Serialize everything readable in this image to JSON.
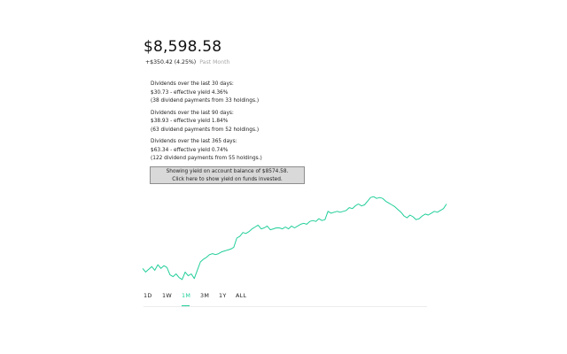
{
  "portfolio": {
    "balance": "$8,598.58",
    "change_value": "+$350.42 (4.25%)",
    "change_period": "Past Month"
  },
  "dividends": [
    {
      "heading": "Dividends over the last 30 days:",
      "amount_line": "$30.73 - effective yield 4.36%",
      "count_line": "(38 dividend payments from 33 holdings.)"
    },
    {
      "heading": "Dividends over the last 90 days:",
      "amount_line": "$38.93 - effective yield 1.84%",
      "count_line": "(63 dividend payments from 52 holdings.)"
    },
    {
      "heading": "Dividends over the last 365 days:",
      "amount_line": "$63.34 - effective yield 0.74%",
      "count_line": "(122 dividend payments from 55 holdings.)"
    }
  ],
  "yield_toggle": {
    "line1": "Showing yield on account balance of $8574.58.",
    "line2": "Click here to show yield on funds invested."
  },
  "range_tabs": [
    {
      "label": "1D",
      "active": false
    },
    {
      "label": "1W",
      "active": false
    },
    {
      "label": "1M",
      "active": true
    },
    {
      "label": "3M",
      "active": false
    },
    {
      "label": "1Y",
      "active": false
    },
    {
      "label": "ALL",
      "active": false
    }
  ],
  "colors": {
    "accent": "#21ce99",
    "line": "#21ce99"
  },
  "chart_data": {
    "type": "line",
    "title": "",
    "xlabel": "",
    "ylabel": "",
    "x_range": [
      0,
      100
    ],
    "ylim": [
      0,
      100
    ],
    "grid": false,
    "legend": "none",
    "series": [
      {
        "values": [
          [
            0,
            18
          ],
          [
            1,
            14
          ],
          [
            2,
            17
          ],
          [
            3,
            20
          ],
          [
            4,
            16
          ],
          [
            5,
            22
          ],
          [
            6,
            18
          ],
          [
            7,
            21
          ],
          [
            8,
            19
          ],
          [
            9,
            11
          ],
          [
            10,
            9
          ],
          [
            11,
            12
          ],
          [
            12,
            8
          ],
          [
            13,
            6
          ],
          [
            14,
            14
          ],
          [
            15,
            10
          ],
          [
            16,
            12
          ],
          [
            17,
            7
          ],
          [
            18,
            16
          ],
          [
            19,
            25
          ],
          [
            20,
            28
          ],
          [
            21,
            30
          ],
          [
            22,
            33
          ],
          [
            23,
            34
          ],
          [
            24,
            33
          ],
          [
            25,
            34
          ],
          [
            26,
            36
          ],
          [
            27,
            37
          ],
          [
            28,
            38
          ],
          [
            29,
            39
          ],
          [
            30,
            41
          ],
          [
            31,
            51
          ],
          [
            32,
            53
          ],
          [
            33,
            57
          ],
          [
            34,
            56
          ],
          [
            35,
            58
          ],
          [
            36,
            61
          ],
          [
            37,
            63
          ],
          [
            38,
            65
          ],
          [
            39,
            61
          ],
          [
            40,
            62
          ],
          [
            41,
            64
          ],
          [
            42,
            60
          ],
          [
            43,
            61
          ],
          [
            44,
            62
          ],
          [
            45,
            62
          ],
          [
            46,
            61
          ],
          [
            47,
            63
          ],
          [
            48,
            61
          ],
          [
            49,
            64
          ],
          [
            50,
            62
          ],
          [
            51,
            64
          ],
          [
            52,
            66
          ],
          [
            53,
            67
          ],
          [
            54,
            66
          ],
          [
            55,
            69
          ],
          [
            56,
            70
          ],
          [
            57,
            69
          ],
          [
            58,
            72
          ],
          [
            59,
            70
          ],
          [
            60,
            71
          ],
          [
            61,
            80
          ],
          [
            62,
            78
          ],
          [
            63,
            79
          ],
          [
            64,
            80
          ],
          [
            65,
            79
          ],
          [
            66,
            80
          ],
          [
            67,
            81
          ],
          [
            68,
            84
          ],
          [
            69,
            83
          ],
          [
            70,
            86
          ],
          [
            71,
            88
          ],
          [
            72,
            86
          ],
          [
            73,
            87
          ],
          [
            74,
            91
          ],
          [
            75,
            95
          ],
          [
            76,
            96
          ],
          [
            77,
            94
          ],
          [
            78,
            95
          ],
          [
            79,
            94
          ],
          [
            80,
            91
          ],
          [
            81,
            89
          ],
          [
            82,
            87
          ],
          [
            83,
            85
          ],
          [
            84,
            82
          ],
          [
            85,
            79
          ],
          [
            86,
            75
          ],
          [
            87,
            73
          ],
          [
            88,
            76
          ],
          [
            89,
            74
          ],
          [
            90,
            71
          ],
          [
            91,
            72
          ],
          [
            92,
            75
          ],
          [
            93,
            77
          ],
          [
            94,
            76
          ],
          [
            95,
            78
          ],
          [
            96,
            80
          ],
          [
            97,
            79
          ],
          [
            98,
            81
          ],
          [
            99,
            83
          ],
          [
            100,
            88
          ]
        ]
      }
    ]
  }
}
